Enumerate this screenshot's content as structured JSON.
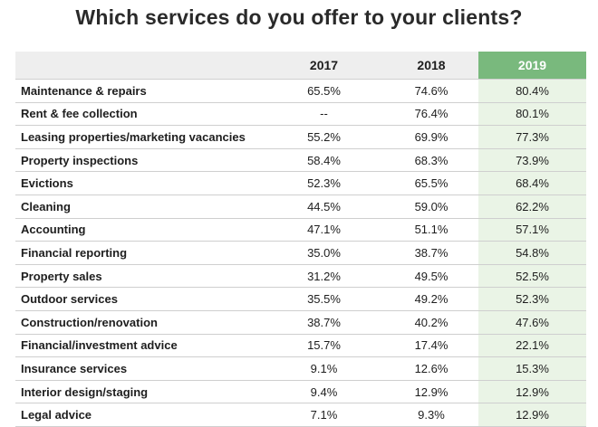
{
  "chart_data": {
    "type": "table",
    "title": "Which services do you offer to your clients?",
    "columns": [
      "2017",
      "2018",
      "2019"
    ],
    "highlight_column": "2019",
    "highlight_color": "#79b97d",
    "highlight_tint": "#eaf4e6",
    "rows": [
      {
        "label": "Maintenance & repairs",
        "values": [
          "65.5%",
          "74.6%",
          "80.4%"
        ]
      },
      {
        "label": "Rent & fee collection",
        "values": [
          "--",
          "76.4%",
          "80.1%"
        ]
      },
      {
        "label": "Leasing properties/marketing vacancies",
        "values": [
          "55.2%",
          "69.9%",
          "77.3%"
        ]
      },
      {
        "label": "Property inspections",
        "values": [
          "58.4%",
          "68.3%",
          "73.9%"
        ]
      },
      {
        "label": "Evictions",
        "values": [
          "52.3%",
          "65.5%",
          "68.4%"
        ]
      },
      {
        "label": "Cleaning",
        "values": [
          "44.5%",
          "59.0%",
          "62.2%"
        ]
      },
      {
        "label": "Accounting",
        "values": [
          "47.1%",
          "51.1%",
          "57.1%"
        ]
      },
      {
        "label": "Financial reporting",
        "values": [
          "35.0%",
          "38.7%",
          "54.8%"
        ]
      },
      {
        "label": "Property sales",
        "values": [
          "31.2%",
          "49.5%",
          "52.5%"
        ]
      },
      {
        "label": "Outdoor services",
        "values": [
          "35.5%",
          "49.2%",
          "52.3%"
        ]
      },
      {
        "label": "Construction/renovation",
        "values": [
          "38.7%",
          "40.2%",
          "47.6%"
        ]
      },
      {
        "label": "Financial/investment advice",
        "values": [
          "15.7%",
          "17.4%",
          "22.1%"
        ]
      },
      {
        "label": "Insurance services",
        "values": [
          "9.1%",
          "12.6%",
          "15.3%"
        ]
      },
      {
        "label": "Interior design/staging",
        "values": [
          "9.4%",
          "12.9%",
          "12.9%"
        ]
      },
      {
        "label": "Legal advice",
        "values": [
          "7.1%",
          "9.3%",
          "12.9%"
        ]
      }
    ]
  }
}
